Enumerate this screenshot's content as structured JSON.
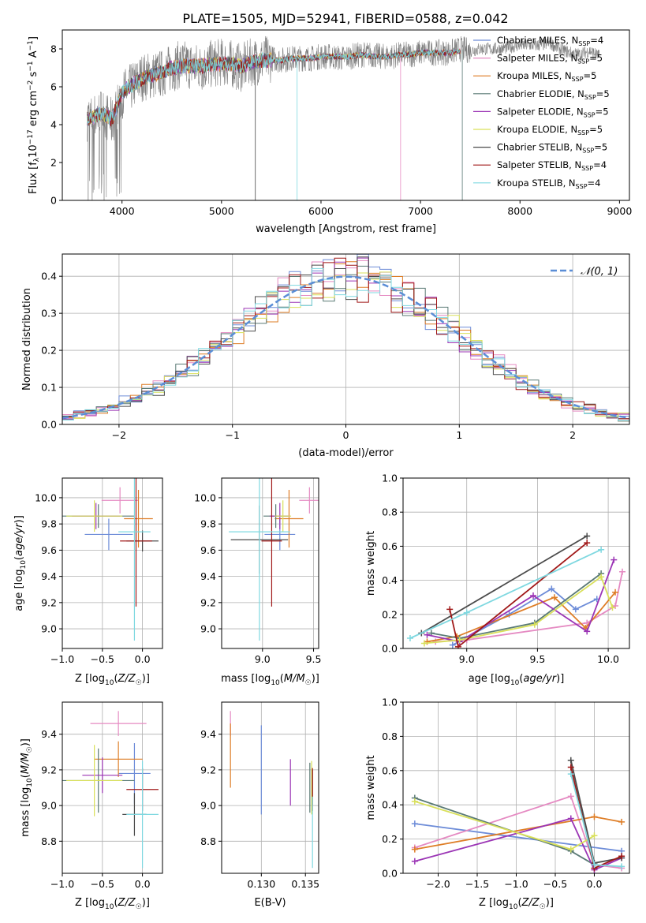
{
  "figure": {
    "title": "PLATE=1505, MJD=52941, FIBERID=0588, z=0.042"
  },
  "chart_data": [
    {
      "id": "spectrum",
      "type": "line",
      "xlabel": "wavelength [Angstrom, rest frame]",
      "ylabel": "Flux [fλ10^-17 erg cm^-2 s^-1 A^-1]",
      "xlim": [
        3400,
        9100
      ],
      "ylim": [
        0,
        9
      ],
      "xticks": [
        4000,
        5000,
        6000,
        7000,
        8000,
        9000
      ],
      "yticks": [
        0,
        2,
        4,
        6,
        8
      ],
      "grid": false,
      "legend_position": "top-right",
      "data_series": {
        "name": "data",
        "color": "#808080",
        "x": [
          3650,
          3700,
          3800,
          3900,
          4000,
          4100,
          4200,
          4300,
          4400,
          4500,
          4600,
          4700,
          4800,
          4900,
          5000,
          5100,
          5200,
          5300,
          5400,
          5500,
          5600,
          5700,
          5800,
          5900,
          6000,
          6100,
          6200,
          6300,
          6400,
          6500,
          6600,
          6700,
          6800,
          6900,
          7000,
          7100,
          7200,
          7300,
          7400,
          7500,
          7600,
          7700,
          7800,
          7900,
          8000,
          8100,
          8200,
          8300,
          8400,
          8500,
          8600,
          8700,
          8800
        ],
        "y": [
          4.4,
          4.3,
          4.7,
          4.1,
          5.6,
          6.0,
          6.5,
          6.6,
          6.7,
          7.0,
          7.2,
          7.1,
          7.0,
          7.2,
          7.3,
          7.2,
          7.0,
          7.3,
          7.4,
          7.5,
          7.4,
          7.5,
          7.5,
          7.5,
          7.6,
          7.6,
          7.5,
          7.6,
          7.7,
          7.7,
          7.6,
          7.6,
          7.7,
          7.7,
          7.8,
          7.8,
          7.8,
          7.8,
          8.0,
          7.9,
          8.0,
          8.0,
          8.0,
          8.1,
          8.2,
          8.2,
          8.2,
          8.3,
          8.0,
          7.8,
          7.7,
          7.9,
          7.6
        ]
      },
      "model_x": [
        3650,
        3700,
        3800,
        3900,
        4000,
        4100,
        4200,
        4300,
        4400,
        4500,
        4600,
        4700,
        4800,
        4900,
        5000,
        5100,
        5200,
        5300,
        5400,
        5500,
        5600,
        5700,
        5800,
        5900,
        6000,
        6100,
        6200,
        6300,
        6400,
        6500,
        6600,
        6700,
        6800,
        6900,
        7000,
        7100,
        7200,
        7300,
        7400
      ],
      "model_y": [
        4.3,
        4.4,
        4.6,
        4.3,
        5.7,
        6.1,
        6.4,
        6.6,
        6.8,
        7.0,
        7.1,
        7.1,
        7.1,
        7.2,
        7.2,
        7.2,
        7.1,
        7.3,
        7.4,
        7.4,
        7.4,
        7.5,
        7.5,
        7.5,
        7.6,
        7.6,
        7.6,
        7.6,
        7.7,
        7.6,
        7.6,
        7.6,
        7.7,
        7.7,
        7.8,
        7.8,
        7.8,
        7.8,
        7.9
      ],
      "series": [
        {
          "name": "Chabrier MILES, N_SSP=4",
          "color": "#6d8cd8"
        },
        {
          "name": "Salpeter MILES, N_SSP=5",
          "color": "#e58ac2"
        },
        {
          "name": "Kroupa MILES, N_SSP=5",
          "color": "#de7d26"
        },
        {
          "name": "Chabrier ELODIE, N_SSP=5",
          "color": "#5a7a75"
        },
        {
          "name": "Salpeter ELODIE, N_SSP=5",
          "color": "#9b35b5"
        },
        {
          "name": "Kroupa ELODIE, N_SSP=5",
          "color": "#d9e05a"
        },
        {
          "name": "Chabrier STELIB, N_SSP=5",
          "color": "#4b4b4b"
        },
        {
          "name": "Salpeter STELIB, N_SSP=4",
          "color": "#a01818"
        },
        {
          "name": "Kroupa STELIB, N_SSP=4",
          "color": "#7fd8e0"
        }
      ],
      "legend": [
        {
          "prefix": "Chabrier MILES, N",
          "sub": "SSP",
          "suffix": "=4"
        },
        {
          "prefix": "Salpeter MILES, N",
          "sub": "SSP",
          "suffix": "=5"
        },
        {
          "prefix": "Kroupa MILES, N",
          "sub": "SSP",
          "suffix": "=5"
        },
        {
          "prefix": "Chabrier ELODIE, N",
          "sub": "SSP",
          "suffix": "=5"
        },
        {
          "prefix": "Salpeter ELODIE, N",
          "sub": "SSP",
          "suffix": "=5"
        },
        {
          "prefix": "Kroupa ELODIE, N",
          "sub": "SSP",
          "suffix": "=5"
        },
        {
          "prefix": "Chabrier STELIB, N",
          "sub": "SSP",
          "suffix": "=5"
        },
        {
          "prefix": "Salpeter STELIB, N",
          "sub": "SSP",
          "suffix": "=4"
        },
        {
          "prefix": "Kroupa STELIB, N",
          "sub": "SSP",
          "suffix": "=4"
        }
      ]
    },
    {
      "id": "residuals",
      "type": "area",
      "xlabel": "(data-model)/error",
      "ylabel": "Normed distribution",
      "xlim": [
        -2.5,
        2.5
      ],
      "ylim": [
        0,
        0.46
      ],
      "xticks": [
        -2,
        -1,
        0,
        1,
        2
      ],
      "yticks": [
        0.0,
        0.1,
        0.2,
        0.3,
        0.4
      ],
      "grid": true,
      "legend_position": "top-right",
      "legend_label": "𝒩(0, 1)",
      "reference_curve": {
        "name": "𝒩(0, 1)",
        "mean": 0,
        "sigma": 1,
        "color": "#5b8ed6"
      },
      "histogram_bin_width": 0.1
    },
    {
      "id": "age-vs-Z",
      "type": "scatter",
      "xlabel": "Z [log10(Z/Z☉)]",
      "ylabel": "age [log10(age/yr)]",
      "xlim": [
        -1.0,
        0.25
      ],
      "ylim": [
        8.85,
        10.15
      ],
      "xticks": [
        -1.0,
        -0.5,
        0.0
      ],
      "yticks": [
        9.0,
        9.2,
        9.4,
        9.6,
        9.8,
        10.0
      ],
      "grid": true,
      "points": [
        {
          "x": -0.42,
          "y": 9.72,
          "xerr": 0.3,
          "yerr": 0.12,
          "color": "#6d8cd8"
        },
        {
          "x": -0.28,
          "y": 9.98,
          "xerr": 0.23,
          "yerr": 0.1,
          "color": "#e58ac2"
        },
        {
          "x": -0.05,
          "y": 9.84,
          "xerr": 0.18,
          "yerr": 0.22,
          "color": "#de7d26"
        },
        {
          "x": -0.55,
          "y": 9.86,
          "xerr": 0.45,
          "yerr": 0.09,
          "color": "#5a7a75"
        },
        {
          "x": -0.58,
          "y": 9.86,
          "xerr": 0.3,
          "yerr": 0.1,
          "color": "#9b35b5"
        },
        {
          "x": -0.6,
          "y": 9.86,
          "xerr": 0.35,
          "yerr": 0.12,
          "color": "#d9e05a"
        },
        {
          "x": 0.0,
          "y": 9.67,
          "xerr": 0.2,
          "yerr": 0.08,
          "color": "#4b4b4b"
        },
        {
          "x": -0.08,
          "y": 9.67,
          "xerr": 0.2,
          "yerr": 0.5,
          "color": "#a01818"
        },
        {
          "x": -0.1,
          "y": 9.74,
          "xerr": 0.2,
          "yerr": 0.83,
          "color": "#7fd8e0"
        }
      ]
    },
    {
      "id": "age-vs-mass",
      "type": "scatter",
      "xlabel": "mass [log10(M/M☉)]",
      "ylabel": "",
      "xlim": [
        8.6,
        9.55
      ],
      "ylim": [
        8.85,
        10.15
      ],
      "xticks": [
        9.0,
        9.5
      ],
      "yticks": [
        9.0,
        9.2,
        9.4,
        9.6,
        9.8,
        10.0
      ],
      "grid": true,
      "points": [
        {
          "x": 9.17,
          "y": 9.72,
          "xerr": 0.15,
          "yerr": 0.12,
          "color": "#6d8cd8"
        },
        {
          "x": 9.46,
          "y": 9.98,
          "xerr": 0.1,
          "yerr": 0.1,
          "color": "#e58ac2"
        },
        {
          "x": 9.26,
          "y": 9.84,
          "xerr": 0.14,
          "yerr": 0.22,
          "color": "#de7d26"
        },
        {
          "x": 9.13,
          "y": 9.86,
          "xerr": 0.12,
          "yerr": 0.09,
          "color": "#5a7a75"
        },
        {
          "x": 9.17,
          "y": 9.86,
          "xerr": 0.1,
          "yerr": 0.1,
          "color": "#9b35b5"
        },
        {
          "x": 9.2,
          "y": 9.86,
          "xerr": 0.08,
          "yerr": 0.12,
          "color": "#d9e05a"
        },
        {
          "x": 8.97,
          "y": 9.68,
          "xerr": 0.28,
          "yerr": 0.26,
          "color": "#4b4b4b"
        },
        {
          "x": 9.09,
          "y": 9.67,
          "xerr": 0.1,
          "yerr": 0.5,
          "color": "#a01818"
        },
        {
          "x": 8.97,
          "y": 9.74,
          "xerr": 0.3,
          "yerr": 0.83,
          "color": "#7fd8e0"
        }
      ]
    },
    {
      "id": "mass-weight-vs-age",
      "type": "line",
      "xlabel": "age [log10(age/yr)]",
      "ylabel": "mass weight",
      "xlim": [
        8.55,
        10.15
      ],
      "ylim": [
        0,
        1
      ],
      "xticks": [
        9.0,
        9.5,
        10.0
      ],
      "yticks": [
        0.0,
        0.2,
        0.4,
        0.6,
        0.8,
        1.0
      ],
      "grid": true,
      "series": [
        {
          "color": "#6d8cd8",
          "x": [
            8.9,
            9.3,
            9.6,
            9.77,
            9.92
          ],
          "y": [
            0.02,
            0.2,
            0.35,
            0.23,
            0.29
          ]
        },
        {
          "color": "#e58ac2",
          "x": [
            8.78,
            9.0,
            9.85,
            10.05,
            10.1
          ],
          "y": [
            0.04,
            0.05,
            0.15,
            0.25,
            0.45
          ]
        },
        {
          "color": "#de7d26",
          "x": [
            8.72,
            8.93,
            9.62,
            9.84,
            10.05
          ],
          "y": [
            0.04,
            0.07,
            0.3,
            0.12,
            0.33
          ]
        },
        {
          "color": "#5a7a75",
          "x": [
            8.75,
            8.95,
            9.48,
            9.95
          ],
          "y": [
            0.09,
            0.06,
            0.15,
            0.44
          ]
        },
        {
          "color": "#9b35b5",
          "x": [
            8.72,
            8.95,
            9.47,
            9.85,
            10.04
          ],
          "y": [
            0.08,
            0.04,
            0.31,
            0.1,
            0.52
          ]
        },
        {
          "color": "#d9e05a",
          "x": [
            8.7,
            8.95,
            9.48,
            9.95,
            10.03
          ],
          "y": [
            0.03,
            0.05,
            0.14,
            0.42,
            0.24
          ]
        },
        {
          "color": "#4b4b4b",
          "x": [
            8.68,
            9.85
          ],
          "y": [
            0.09,
            0.66
          ]
        },
        {
          "color": "#a01818",
          "x": [
            8.88,
            8.94,
            9.85
          ],
          "y": [
            0.23,
            0.01,
            0.62
          ]
        },
        {
          "color": "#7fd8e0",
          "x": [
            8.6,
            9.0,
            9.95
          ],
          "y": [
            0.06,
            0.21,
            0.58
          ]
        }
      ]
    },
    {
      "id": "mass-vs-Z",
      "type": "scatter",
      "xlabel": "Z [log10(Z/Z☉)]",
      "ylabel": "mass [log10(M/M☉)]",
      "xlim": [
        -1.0,
        0.25
      ],
      "ylim": [
        8.62,
        9.58
      ],
      "xticks": [
        -1.0,
        -0.5,
        0.0
      ],
      "yticks": [
        8.8,
        9.0,
        9.2,
        9.4
      ],
      "grid": true,
      "points": [
        {
          "x": -0.1,
          "y": 9.18,
          "xerr": 0.2,
          "yerr": 0.17,
          "color": "#6d8cd8"
        },
        {
          "x": -0.3,
          "y": 9.46,
          "xerr": 0.35,
          "yerr": 0.07,
          "color": "#e58ac2"
        },
        {
          "x": -0.3,
          "y": 9.26,
          "xerr": 0.3,
          "yerr": 0.1,
          "color": "#de7d26"
        },
        {
          "x": -0.55,
          "y": 9.14,
          "xerr": 0.45,
          "yerr": 0.18,
          "color": "#5a7a75"
        },
        {
          "x": -0.5,
          "y": 9.17,
          "xerr": 0.25,
          "yerr": 0.1,
          "color": "#9b35b5"
        },
        {
          "x": -0.6,
          "y": 9.14,
          "xerr": 0.35,
          "yerr": 0.2,
          "color": "#d9e05a"
        },
        {
          "x": -0.1,
          "y": 8.95,
          "xerr": 0.15,
          "yerr": 0.12,
          "color": "#4b4b4b"
        },
        {
          "x": 0.0,
          "y": 9.09,
          "xerr": 0.2,
          "yerr": 0.12,
          "color": "#a01818"
        },
        {
          "x": 0.0,
          "y": 8.95,
          "xerr": 0.2,
          "yerr": 0.3,
          "color": "#7fd8e0"
        }
      ]
    },
    {
      "id": "mass-vs-EBV",
      "type": "scatter",
      "xlabel": "E(B-V)",
      "ylabel": "",
      "xlim": [
        0.1255,
        0.1365
      ],
      "ylim": [
        8.62,
        9.58
      ],
      "xticks": [
        0.13,
        0.135
      ],
      "yticks": [
        8.8,
        9.0,
        9.2,
        9.4
      ],
      "grid": true,
      "points": [
        {
          "x": 0.13,
          "y": 9.2,
          "yerr": 0.25,
          "color": "#6d8cd8"
        },
        {
          "x": 0.1265,
          "y": 9.46,
          "yerr": 0.07,
          "color": "#e58ac2"
        },
        {
          "x": 0.1265,
          "y": 9.28,
          "yerr": 0.18,
          "color": "#de7d26"
        },
        {
          "x": 0.1355,
          "y": 9.1,
          "yerr": 0.14,
          "color": "#5a7a75"
        },
        {
          "x": 0.1333,
          "y": 9.13,
          "yerr": 0.13,
          "color": "#9b35b5"
        },
        {
          "x": 0.1357,
          "y": 9.1,
          "yerr": 0.15,
          "color": "#d9e05a"
        },
        {
          "x": 0.1358,
          "y": 9.1,
          "yerr": 0.1,
          "color": "#4b4b4b"
        },
        {
          "x": 0.1358,
          "y": 9.09,
          "yerr": 0.12,
          "color": "#a01818"
        },
        {
          "x": 0.1358,
          "y": 8.85,
          "yerr": 0.2,
          "color": "#7fd8e0"
        }
      ]
    },
    {
      "id": "mass-weight-vs-Z",
      "type": "line",
      "xlabel": "Z [log10(Z/Z☉)]",
      "ylabel": "mass weight",
      "xlim": [
        -2.45,
        0.45
      ],
      "ylim": [
        0,
        1
      ],
      "xticks": [
        -2.0,
        -1.5,
        -1.0,
        -0.5,
        0.0
      ],
      "yticks": [
        0.0,
        0.2,
        0.4,
        0.6,
        0.8,
        1.0
      ],
      "grid": true,
      "series": [
        {
          "color": "#6d8cd8",
          "x": [
            -2.3,
            0.35
          ],
          "y": [
            0.29,
            0.13
          ]
        },
        {
          "color": "#e58ac2",
          "x": [
            -2.3,
            -0.3,
            0.0,
            0.35
          ],
          "y": [
            0.15,
            0.45,
            0.05,
            0.03
          ]
        },
        {
          "color": "#de7d26",
          "x": [
            -2.3,
            0.0,
            0.35
          ],
          "y": [
            0.14,
            0.33,
            0.3
          ]
        },
        {
          "color": "#5a7a75",
          "x": [
            -2.3,
            -0.3,
            0.0
          ],
          "y": [
            0.44,
            0.13,
            0.05
          ]
        },
        {
          "color": "#9b35b5",
          "x": [
            -2.3,
            -0.3,
            0.0,
            0.35
          ],
          "y": [
            0.07,
            0.32,
            0.02,
            0.09
          ]
        },
        {
          "color": "#d9e05a",
          "x": [
            -2.3,
            -0.3,
            0.0
          ],
          "y": [
            0.42,
            0.14,
            0.22
          ]
        },
        {
          "color": "#4b4b4b",
          "x": [
            -0.3,
            0.0,
            0.35
          ],
          "y": [
            0.66,
            0.06,
            0.09
          ]
        },
        {
          "color": "#a01818",
          "x": [
            -0.3,
            0.0,
            0.35
          ],
          "y": [
            0.62,
            0.03,
            0.1
          ]
        },
        {
          "color": "#7fd8e0",
          "x": [
            -0.3,
            0.0,
            0.35
          ],
          "y": [
            0.58,
            0.05,
            0.04
          ]
        }
      ]
    }
  ]
}
